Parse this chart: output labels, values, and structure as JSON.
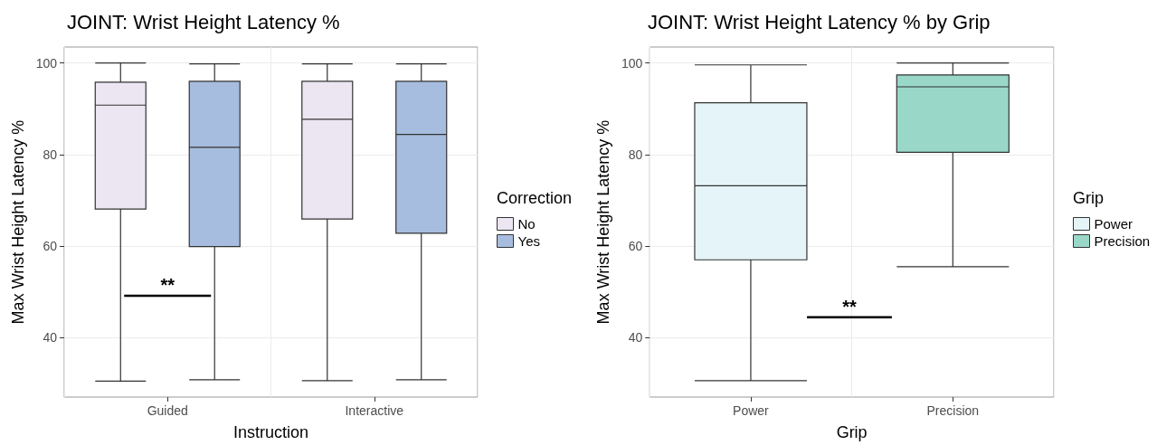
{
  "chart_data": [
    {
      "type": "box",
      "title": "JOINT: Wrist Height Latency %",
      "xlabel": "Instruction",
      "ylabel": "Max Wrist Height Latency %",
      "legend_title": "Correction",
      "categories": [
        "Guided",
        "Interactive"
      ],
      "series": [
        {
          "name": "No",
          "color": "#ece6f2",
          "boxes": [
            {
              "low": 30.5,
              "q1": 68.1,
              "median": 90.8,
              "q3": 95.8,
              "high": 100
            },
            {
              "low": 30.6,
              "q1": 65.9,
              "median": 87.7,
              "q3": 96,
              "high": 99.8
            }
          ]
        },
        {
          "name": "Yes",
          "color": "#a7bddf",
          "boxes": [
            {
              "low": 30.8,
              "q1": 59.9,
              "median": 81.6,
              "q3": 96,
              "high": 99.8
            },
            {
              "low": 30.8,
              "q1": 62.8,
              "median": 84.4,
              "q3": 96,
              "high": 99.8
            }
          ]
        }
      ],
      "ylim": [
        27,
        103.5
      ],
      "yticks": [
        40,
        60,
        80,
        100
      ],
      "grid": true,
      "legend": "right",
      "annotations": [
        "**"
      ]
    },
    {
      "type": "box",
      "title": "JOINT: Wrist Height Latency % by Grip",
      "xlabel": "Grip",
      "ylabel": "Max Wrist Height Latency %",
      "legend_title": "Grip",
      "categories": [
        "Power",
        "Precision"
      ],
      "series": [
        {
          "name": "Power",
          "color": "#e5f4f8",
          "boxes": [
            {
              "low": 30.6,
              "q1": 57,
              "median": 73.2,
              "q3": 91.3,
              "high": 99.6
            },
            null
          ]
        },
        {
          "name": "Precision",
          "color": "#99d8c9",
          "boxes": [
            null,
            {
              "low": 55.5,
              "q1": 80.5,
              "median": 94.8,
              "q3": 97.4,
              "high": 100
            }
          ]
        }
      ],
      "ylim": [
        27,
        103.5
      ],
      "yticks": [
        40,
        60,
        80,
        100
      ],
      "grid": true,
      "legend": "right",
      "annotations": [
        "**"
      ]
    }
  ]
}
